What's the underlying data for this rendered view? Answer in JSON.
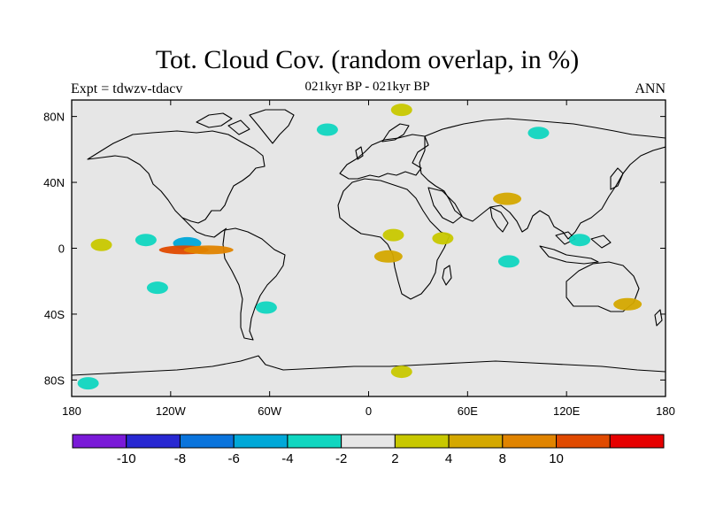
{
  "header": {
    "title": "Tot. Cloud Cov. (random overlap, in %)",
    "subtitle": "021kyr BP - 021kyr BP",
    "left_label": "Expt = tdwzv-tdacv",
    "right_label": "ANN"
  },
  "axes": {
    "lon_ticks": [
      "180",
      "120W",
      "60W",
      "0",
      "60E",
      "120E",
      "180"
    ],
    "lon_values": [
      -180,
      -120,
      -60,
      0,
      60,
      120,
      180
    ],
    "lat_ticks": [
      "80N",
      "40N",
      "0",
      "40S",
      "80S"
    ],
    "lat_values": [
      80,
      40,
      0,
      -40,
      -80
    ]
  },
  "colorbar": {
    "colors": [
      "#7a1ad8",
      "#2828d2",
      "#0a74dc",
      "#00a8d8",
      "#10d6c0",
      "#e6e6e6",
      "#c8c800",
      "#d4a800",
      "#e08400",
      "#e04a00",
      "#e60000"
    ],
    "labels": [
      "-10",
      "-8",
      "-6",
      "-4",
      "-2",
      "2",
      "4",
      "8",
      "10"
    ]
  },
  "chart_data": {
    "type": "heatmap",
    "title": "Tot. Cloud Cov. (random overlap, in %)",
    "subtitle": "021kyr BP - 021kyr BP",
    "x_extent": [
      -180,
      180
    ],
    "y_extent": [
      -90,
      90
    ],
    "levels": [
      -10,
      -8,
      -6,
      -4,
      -2,
      2,
      4,
      8,
      10
    ],
    "anomaly_regions": [
      {
        "lon": -135,
        "lat": 5,
        "value": -3
      },
      {
        "lon": -110,
        "lat": 3,
        "value": -6
      },
      {
        "lon": -112,
        "lat": -1,
        "value": 12
      },
      {
        "lon": -97,
        "lat": -1,
        "value": 9
      },
      {
        "lon": -162,
        "lat": 2,
        "value": 3
      },
      {
        "lon": -128,
        "lat": -24,
        "value": -3
      },
      {
        "lon": -62,
        "lat": -36,
        "value": -3
      },
      {
        "lon": 15,
        "lat": 8,
        "value": 3
      },
      {
        "lon": 12,
        "lat": -5,
        "value": 6
      },
      {
        "lon": 45,
        "lat": 6,
        "value": 3
      },
      {
        "lon": 85,
        "lat": -8,
        "value": -4
      },
      {
        "lon": 128,
        "lat": 5,
        "value": -3
      },
      {
        "lon": 84,
        "lat": 30,
        "value": 6
      },
      {
        "lon": 157,
        "lat": -34,
        "value": 6
      },
      {
        "lon": -25,
        "lat": 72,
        "value": -3
      },
      {
        "lon": 103,
        "lat": 70,
        "value": -3
      },
      {
        "lon": 20,
        "lat": 84,
        "value": 3
      },
      {
        "lon": 20,
        "lat": -75,
        "value": 3
      },
      {
        "lon": -170,
        "lat": -82,
        "value": -3
      }
    ]
  }
}
